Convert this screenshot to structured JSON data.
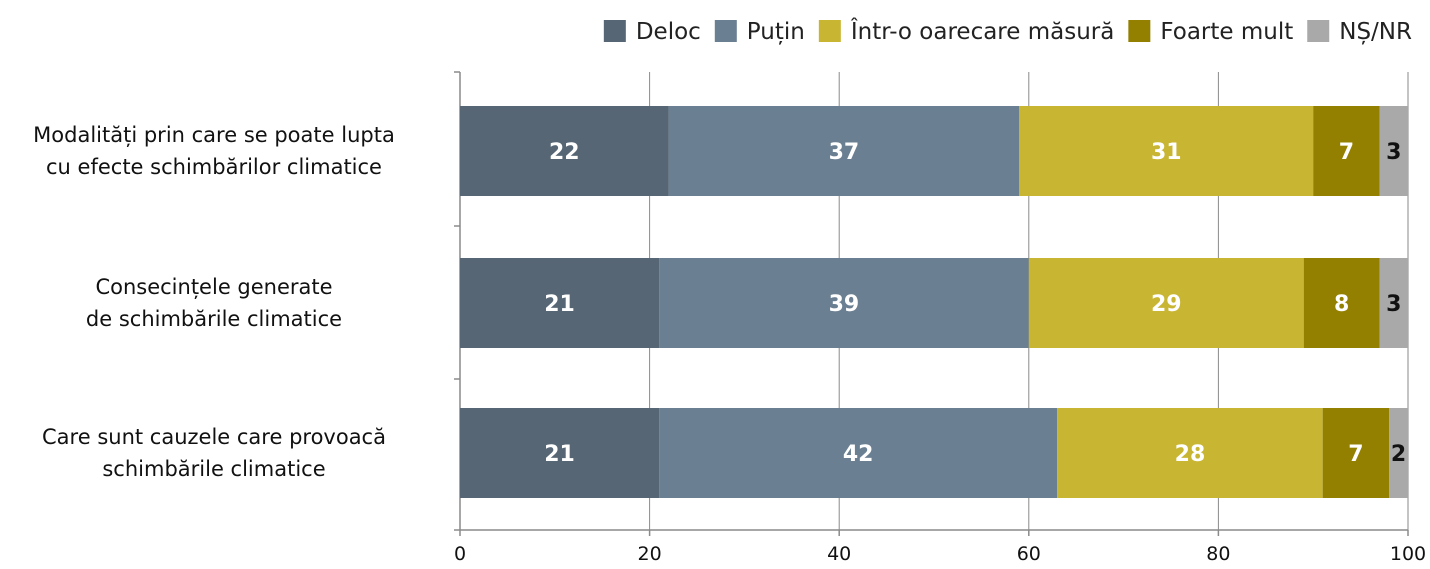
{
  "chart_data": {
    "type": "bar",
    "orientation": "horizontal",
    "stacked": true,
    "categories": [
      [
        "Modalități prin care se poate lupta",
        "cu efecte schimbărilor climatice"
      ],
      [
        "Consecințele generate",
        "de schimbările climatice"
      ],
      [
        "Care sunt cauzele care provoacă",
        "schimbările climatice"
      ]
    ],
    "series": [
      {
        "name": "Deloc",
        "color": "#566675",
        "label_color": "#ffffff",
        "values": [
          22,
          21,
          21
        ],
        "value_labels": [
          "22",
          "21",
          "21"
        ]
      },
      {
        "name": "Puțin",
        "color": "#6b7f92",
        "label_color": "#ffffff",
        "values": [
          37,
          39,
          42
        ],
        "value_labels": [
          "37",
          "39",
          "42"
        ]
      },
      {
        "name": "Într-o oarecare măsură",
        "color": "#c8b532",
        "label_color": "#ffffff",
        "values": [
          31,
          29,
          28
        ],
        "value_labels": [
          "31",
          "29",
          "28"
        ]
      },
      {
        "name": "Foarte mult",
        "color": "#938000",
        "label_color": "#ffffff",
        "values": [
          7,
          8,
          7
        ],
        "value_labels": [
          "7",
          "8",
          "7"
        ]
      },
      {
        "name": "NȘ/NR",
        "color": "#a9a9a9",
        "label_color": "#111111",
        "values": [
          3,
          3,
          2
        ],
        "value_labels": [
          "3",
          "3",
          "2"
        ]
      }
    ],
    "xlim": [
      0,
      100
    ],
    "xticks": [
      "0",
      "20",
      "40",
      "60",
      "80",
      "100"
    ],
    "grid": true,
    "legend_position": "top-right",
    "title": "",
    "xlabel": "",
    "ylabel": ""
  }
}
